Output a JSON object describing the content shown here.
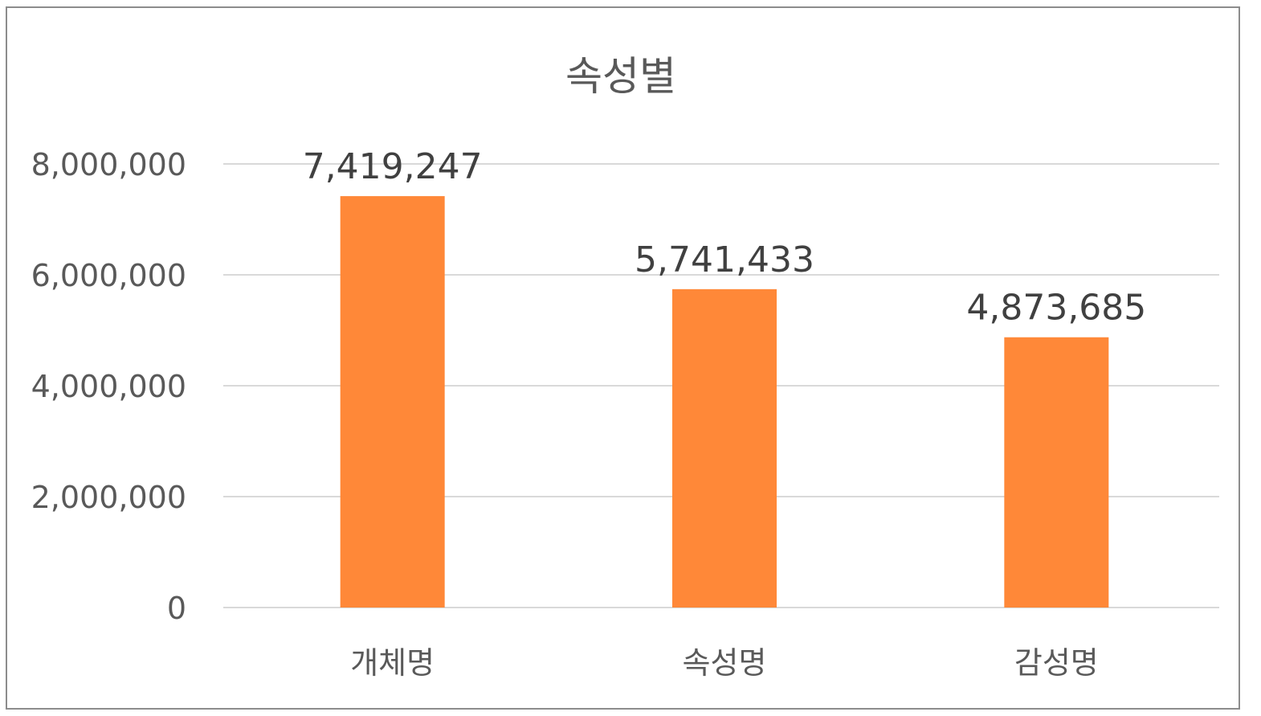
{
  "chart_data": {
    "type": "bar",
    "title": "속성별",
    "xlabel": "",
    "ylabel": "",
    "categories": [
      "개체명",
      "속성명",
      "감성명"
    ],
    "series": [
      {
        "values": [
          7419247,
          5741433,
          4873685
        ],
        "data_labels": [
          "7,419,247",
          "5,741,433",
          "4,873,685"
        ],
        "color": "#FF8838"
      }
    ],
    "ylim": [
      0,
      8000000
    ],
    "yticks": [
      0,
      2000000,
      4000000,
      6000000,
      8000000
    ],
    "ytick_labels": [
      "0",
      "2,000,000",
      "4,000,000",
      "6,000,000",
      "8,000,000"
    ],
    "grid": true,
    "legend": "none"
  }
}
